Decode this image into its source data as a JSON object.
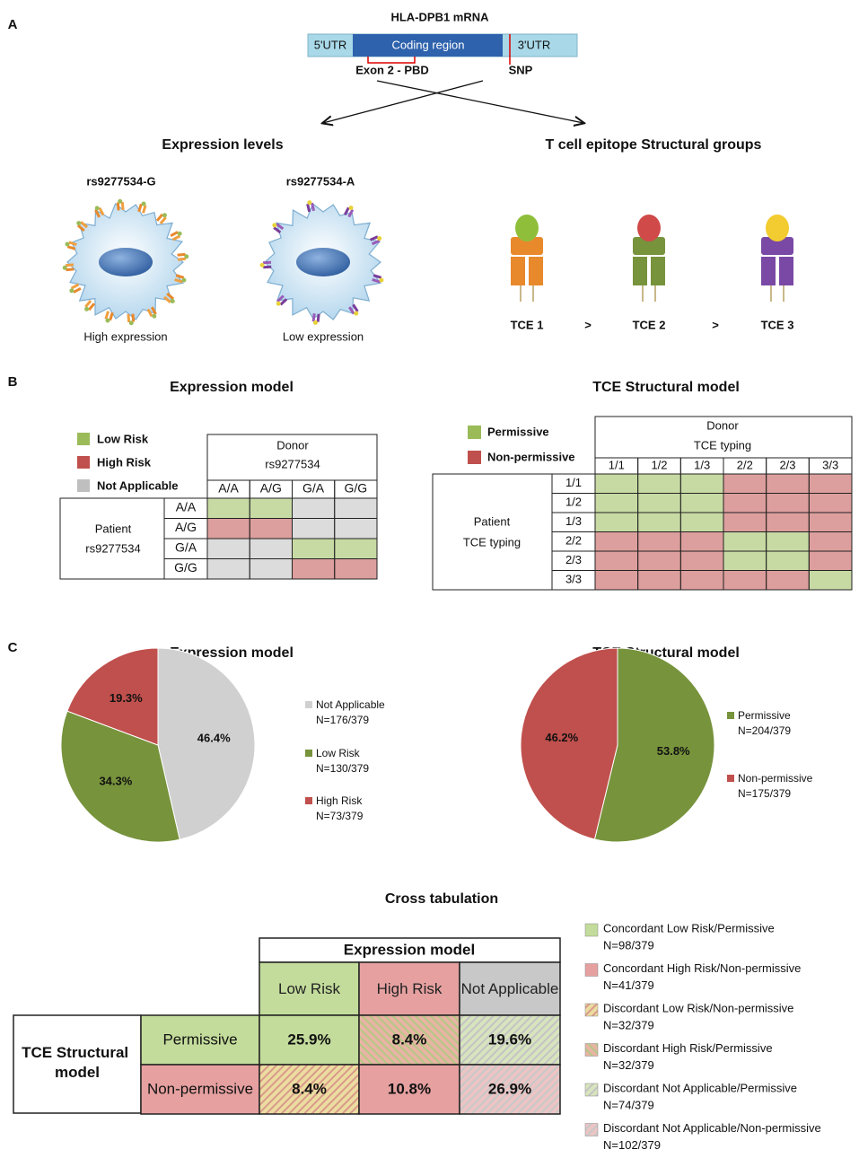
{
  "panel_a": {
    "label": "A",
    "mrna_title": "HLA-DPB1 mRNA",
    "utr5": "5'UTR",
    "coding": "Coding region",
    "utr3": "3'UTR",
    "exon": "Exon 2 - PBD",
    "snp": "SNP",
    "expression_title": "Expression levels",
    "tce_title": "T cell epitope Structural groups",
    "cells": [
      {
        "name": "rs9277534-G",
        "caption": "High expression"
      },
      {
        "name": "rs9277534-A",
        "caption": "Low expression"
      }
    ],
    "tce_groups": [
      "TCE 1",
      "TCE 2",
      "TCE 3"
    ],
    "order_signs": [
      ">",
      ">"
    ]
  },
  "panel_b": {
    "label": "B",
    "expression_model": {
      "title": "Expression model",
      "legend": [
        {
          "label": "Low Risk",
          "color": "#9bbb59"
        },
        {
          "label": "High Risk",
          "color": "#c0504d"
        },
        {
          "label": "Not Applicable",
          "color": "#bfbfbf"
        }
      ],
      "donor": "Donor",
      "donor_sub": "rs9277534",
      "patient": "Patient",
      "patient_sub": "rs9277534",
      "genotypes": [
        "A/A",
        "A/G",
        "G/A",
        "G/G"
      ],
      "grid": [
        [
          0,
          0,
          2,
          2
        ],
        [
          1,
          1,
          2,
          2
        ],
        [
          2,
          2,
          0,
          0
        ],
        [
          2,
          2,
          1,
          1
        ]
      ]
    },
    "tce_model": {
      "title": "TCE Structural model",
      "legend": [
        {
          "label": "Permissive",
          "color": "#9bbb59"
        },
        {
          "label": "Non-permissive",
          "color": "#c0504d"
        }
      ],
      "donor": "Donor",
      "donor_sub": "TCE typing",
      "patient": "Patient",
      "patient_sub": "TCE typing",
      "typings": [
        "1/1",
        "1/2",
        "1/3",
        "2/2",
        "2/3",
        "3/3"
      ],
      "grid": [
        [
          0,
          0,
          0,
          1,
          1,
          1
        ],
        [
          0,
          0,
          0,
          1,
          1,
          1
        ],
        [
          0,
          0,
          0,
          1,
          1,
          1
        ],
        [
          1,
          1,
          1,
          0,
          0,
          1
        ],
        [
          1,
          1,
          1,
          0,
          0,
          1
        ],
        [
          1,
          1,
          1,
          1,
          1,
          0
        ]
      ]
    }
  },
  "panel_c": {
    "label": "C",
    "charts": [
      {
        "type": "pie",
        "title": "Expression model",
        "categories": [
          "Not Applicable",
          "Low Risk",
          "High Risk"
        ],
        "counts": [
          "N=176/379",
          "N=130/379",
          "N=73/379"
        ],
        "values": [
          46.4,
          34.3,
          19.3
        ],
        "value_labels": [
          "46.4%",
          "34.3%",
          "19.3%"
        ],
        "colors": [
          "#d0d0d0",
          "#77933c",
          "#c0504d"
        ]
      },
      {
        "type": "pie",
        "title": "TCE Structural model",
        "categories": [
          "Permissive",
          "Non-permissive"
        ],
        "counts": [
          "N=204/379",
          "N=175/379"
        ],
        "values": [
          53.8,
          46.2
        ],
        "value_labels": [
          "53.8%",
          "46.2%"
        ],
        "colors": [
          "#77933c",
          "#c0504d"
        ]
      }
    ]
  },
  "cross_tab": {
    "title": "Cross tabulation",
    "column_header": "Expression model",
    "columns": [
      "Low Risk",
      "High Risk",
      "Not Applicable"
    ],
    "row_header": "TCE Structural model",
    "rows": [
      "Permissive",
      "Non-permissive"
    ],
    "values": [
      [
        25.9,
        8.4,
        19.6
      ],
      [
        8.4,
        10.8,
        26.9
      ]
    ],
    "value_labels": [
      [
        "25.9%",
        "8.4%",
        "19.6%"
      ],
      [
        "8.4%",
        "10.8%",
        "26.9%"
      ]
    ],
    "legend": [
      {
        "label": "Concordant Low Risk/Permissive",
        "count": "N=98/379"
      },
      {
        "label": "Concordant High Risk/Non-permissive",
        "count": "N=41/379"
      },
      {
        "label": "Discordant Low Risk/Non-permissive",
        "count": "N=32/379"
      },
      {
        "label": "Discordant High Risk/Permissive",
        "count": "N=32/379"
      },
      {
        "label": "Discordant Not Applicable/Permissive",
        "count": "N=74/379"
      },
      {
        "label": "Discordant Not Applicable/Non-permissive",
        "count": "N=102/379"
      }
    ]
  }
}
